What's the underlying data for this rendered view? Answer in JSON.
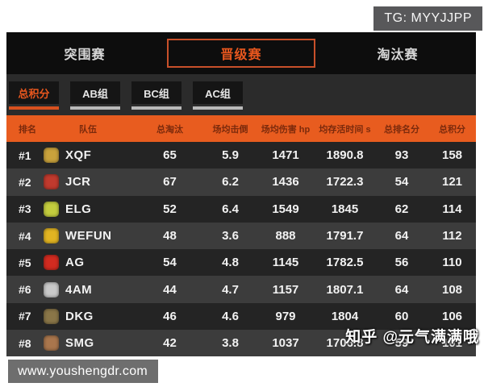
{
  "watermarks": {
    "tg": "TG: MYYJJPP",
    "zhihu": "知乎 @元气满满哦",
    "site": "www.youshengdr.com"
  },
  "colors": {
    "accent_orange": "#e8571e",
    "header_bg": "#e85c1f",
    "header_text": "#7b2a0c",
    "row_dark": "#242424",
    "row_light": "#3c3c3c",
    "tab_border": "#c8502a"
  },
  "tabs": [
    {
      "label": "突围赛",
      "active": false
    },
    {
      "label": "晋级赛",
      "active": true
    },
    {
      "label": "淘汰赛",
      "active": false
    }
  ],
  "subtabs": [
    {
      "label": "总积分",
      "active": true
    },
    {
      "label": "AB组",
      "active": false
    },
    {
      "label": "BC组",
      "active": false
    },
    {
      "label": "AC组",
      "active": false
    }
  ],
  "table": {
    "headers": [
      "排名",
      "队伍",
      "总淘汰",
      "场均击倒",
      "场均伤害 hp",
      "均存活时间 s",
      "总排名分",
      "总积分"
    ],
    "rows": [
      {
        "rank": "#1",
        "team": "XQF",
        "logo_color": "#c9a23c",
        "kills": "65",
        "knockdowns": "5.9",
        "damage": "1471",
        "survival": "1890.8",
        "placement_points": "93",
        "total_points": "158"
      },
      {
        "rank": "#2",
        "team": "JCR",
        "logo_color": "#c03a2e",
        "kills": "67",
        "knockdowns": "6.2",
        "damage": "1436",
        "survival": "1722.3",
        "placement_points": "54",
        "total_points": "121"
      },
      {
        "rank": "#3",
        "team": "ELG",
        "logo_color": "#c3cc3e",
        "kills": "52",
        "knockdowns": "6.4",
        "damage": "1549",
        "survival": "1845",
        "placement_points": "62",
        "total_points": "114"
      },
      {
        "rank": "#4",
        "team": "WEFUN",
        "logo_color": "#e2b422",
        "kills": "48",
        "knockdowns": "3.6",
        "damage": "888",
        "survival": "1791.7",
        "placement_points": "64",
        "total_points": "112"
      },
      {
        "rank": "#5",
        "team": "AG",
        "logo_color": "#d22b20",
        "kills": "54",
        "knockdowns": "4.8",
        "damage": "1145",
        "survival": "1782.5",
        "placement_points": "56",
        "total_points": "110"
      },
      {
        "rank": "#6",
        "team": "4AM",
        "logo_color": "#c9c9c9",
        "kills": "44",
        "knockdowns": "4.7",
        "damage": "1157",
        "survival": "1807.1",
        "placement_points": "64",
        "total_points": "108"
      },
      {
        "rank": "#7",
        "team": "DKG",
        "logo_color": "#8a7648",
        "kills": "46",
        "knockdowns": "4.6",
        "damage": "979",
        "survival": "1804",
        "placement_points": "60",
        "total_points": "106"
      },
      {
        "rank": "#8",
        "team": "SMG",
        "logo_color": "#a9764d",
        "kills": "42",
        "knockdowns": "3.8",
        "damage": "1037",
        "survival": "1706.8",
        "placement_points": "59",
        "total_points": "101"
      }
    ]
  }
}
